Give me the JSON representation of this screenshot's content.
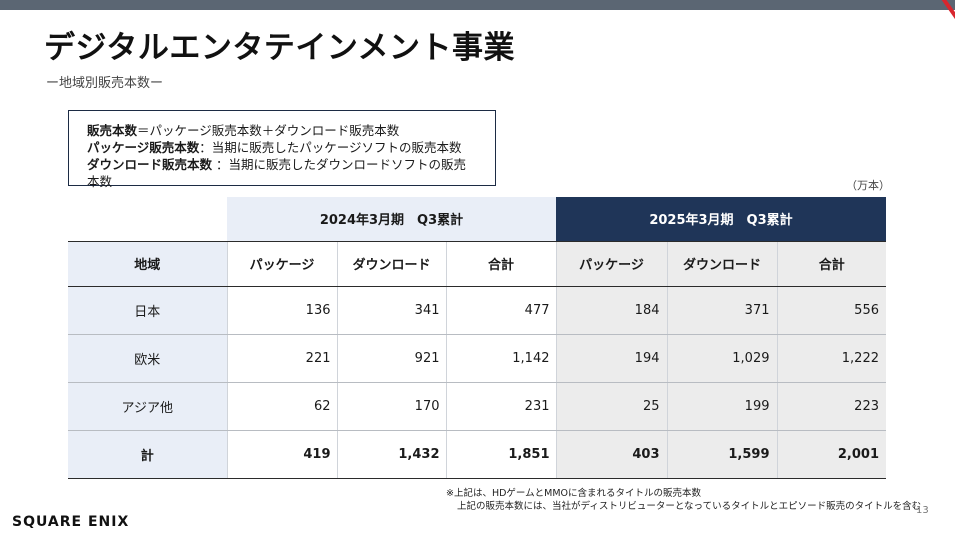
{
  "title": "デジタルエンタテインメント事業",
  "subtitle": "ー地域別販売本数ー",
  "definitions": [
    {
      "term": "販売本数",
      "text": "＝パッケージ販売本数＋ダウンロード販売本数"
    },
    {
      "term": "パッケージ販売本数",
      "text": "：当期に販売したパッケージソフトの販売本数"
    },
    {
      "term": "ダウンロード販売本数",
      "text": " ：当期に販売したダウンロードソフトの販売本数"
    }
  ],
  "unit": "（万本）",
  "table": {
    "period_2024": "2024年3月期　Q3累計",
    "period_2025": "2025年3月期　Q3累計",
    "region_header": "地域",
    "sub_headers": [
      "パッケージ",
      "ダウンロード",
      "合計"
    ],
    "rows": [
      {
        "region": "日本",
        "v": [
          "136",
          "341",
          "477",
          "184",
          "371",
          "556"
        ]
      },
      {
        "region": "欧米",
        "v": [
          "221",
          "921",
          "1,142",
          "194",
          "1,029",
          "1,222"
        ]
      },
      {
        "region": "アジア他",
        "v": [
          "62",
          "170",
          "231",
          "25",
          "199",
          "223"
        ]
      },
      {
        "region": "計",
        "v": [
          "419",
          "1,432",
          "1,851",
          "403",
          "1,599",
          "2,001"
        ]
      }
    ]
  },
  "notes": [
    "※上記は、HDゲームとMMOに含まれるタイトルの販売本数",
    "上記の販売本数には、当社がディストリビューターとなっているタイトルとエピソード販売のタイトルを含む"
  ],
  "logo": "SQUARE ENIX",
  "page_number": "13",
  "colors": {
    "header_dark": "#1f3558",
    "header_light": "#e9eef7",
    "accent": "#d8262e"
  }
}
